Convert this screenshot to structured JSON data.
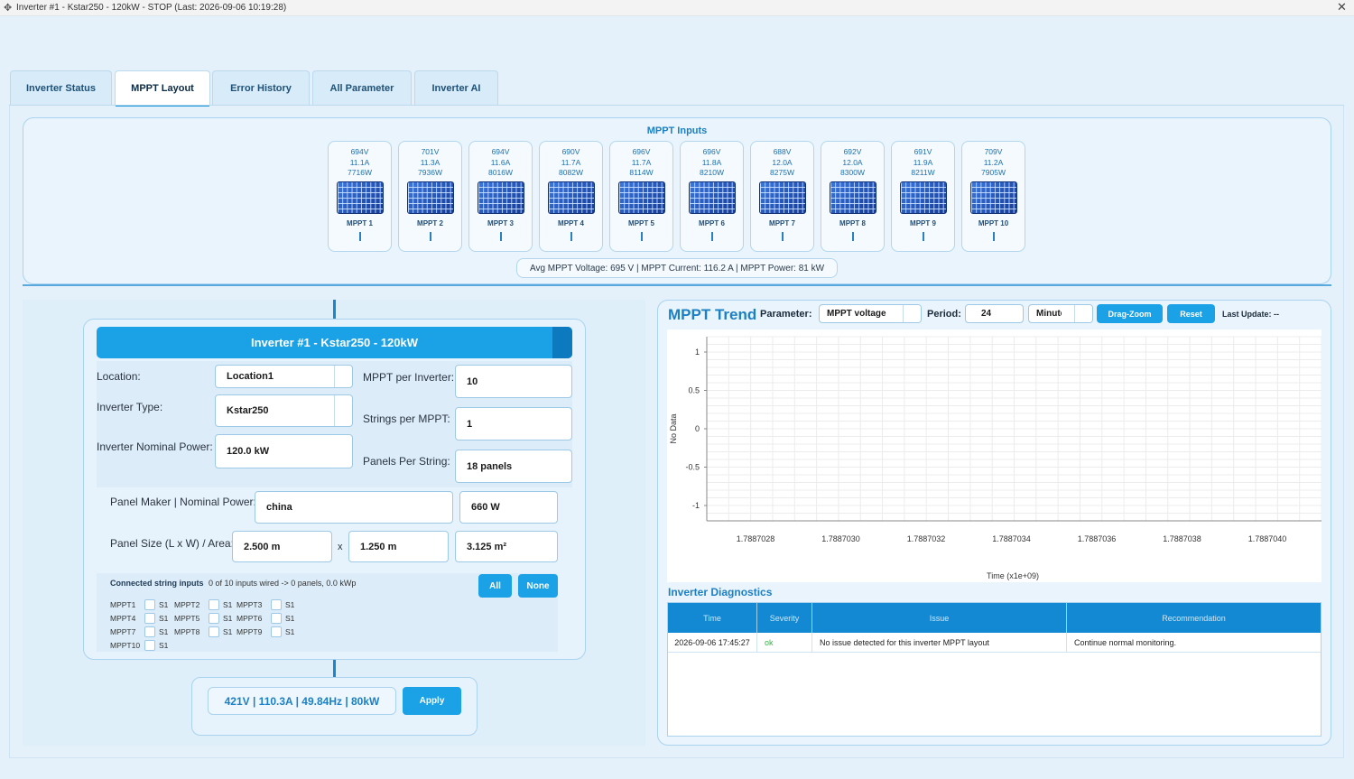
{
  "window": {
    "title": "Inverter #1 - Kstar250 - 120kW - STOP (Last: 2026-09-06 10:19:28)"
  },
  "tabs": [
    {
      "label": "Inverter Status"
    },
    {
      "label": "MPPT Layout"
    },
    {
      "label": "Error History"
    },
    {
      "label": "All Parameter"
    },
    {
      "label": "Inverter AI"
    }
  ],
  "mppt_inputs": {
    "title": "MPPT Inputs",
    "cards": [
      {
        "voltage": "694V",
        "current": "11.1A",
        "power": "7716W",
        "label": "MPPT 1"
      },
      {
        "voltage": "701V",
        "current": "11.3A",
        "power": "7936W",
        "label": "MPPT 2"
      },
      {
        "voltage": "694V",
        "current": "11.6A",
        "power": "8016W",
        "label": "MPPT 3"
      },
      {
        "voltage": "690V",
        "current": "11.7A",
        "power": "8082W",
        "label": "MPPT 4"
      },
      {
        "voltage": "696V",
        "current": "11.7A",
        "power": "8114W",
        "label": "MPPT 5"
      },
      {
        "voltage": "696V",
        "current": "11.8A",
        "power": "8210W",
        "label": "MPPT 6"
      },
      {
        "voltage": "688V",
        "current": "12.0A",
        "power": "8275W",
        "label": "MPPT 7"
      },
      {
        "voltage": "692V",
        "current": "12.0A",
        "power": "8300W",
        "label": "MPPT 8"
      },
      {
        "voltage": "691V",
        "current": "11.9A",
        "power": "8211W",
        "label": "MPPT 9"
      },
      {
        "voltage": "709V",
        "current": "11.2A",
        "power": "7905W",
        "label": "MPPT 10"
      }
    ],
    "summary": "Avg MPPT Voltage: 695 V  |  MPPT Current: 116.2 A  |  MPPT Power: 81 kW"
  },
  "inverter": {
    "header": "Inverter #1 - Kstar250 - 120kW",
    "location_label": "Location:",
    "location_value": "Location1",
    "type_label": "Inverter Type:",
    "type_value": "Kstar250",
    "nominal_label": "Inverter Nominal Power:",
    "nominal_value": "120.0 kW",
    "mppt_per_inv_label": "MPPT per Inverter:",
    "mppt_per_inv_value": "10",
    "strings_per_mppt_label": "Strings per MPPT:",
    "strings_per_mppt_value": "1",
    "panels_per_string_label": "Panels Per String:",
    "panels_per_string_value": "18 panels",
    "panel_maker_label": "Panel Maker | Nominal Power:",
    "panel_maker_value": "china",
    "panel_power_value": "660 W",
    "panel_size_label": "Panel Size (L x W) / Area:",
    "panel_length": "2.500 m",
    "size_sep": "x",
    "panel_width": "1.250 m",
    "panel_area": "3.125 m²",
    "connected_title": "Connected string inputs",
    "connected_status": "0 of 10 inputs wired  ->  0 panels, 0.0 kWp",
    "btn_all": "All",
    "btn_none": "None",
    "string_inputs": [
      {
        "mppt": "MPPT1",
        "s": "S1"
      },
      {
        "mppt": "MPPT2",
        "s": "S1"
      },
      {
        "mppt": "MPPT3",
        "s": "S1"
      },
      {
        "mppt": "MPPT4",
        "s": "S1"
      },
      {
        "mppt": "MPPT5",
        "s": "S1"
      },
      {
        "mppt": "MPPT6",
        "s": "S1"
      },
      {
        "mppt": "MPPT7",
        "s": "S1"
      },
      {
        "mppt": "MPPT8",
        "s": "S1"
      },
      {
        "mppt": "MPPT9",
        "s": "S1"
      },
      {
        "mppt": "MPPT10",
        "s": "S1"
      }
    ],
    "readout": "421V  |  110.3A  |  49.84Hz  |  80kW",
    "apply_label": "Apply"
  },
  "trend": {
    "title": "MPPT Trend",
    "parameter_label": "Parameter:",
    "parameter_value": "MPPT voltage",
    "period_label": "Period:",
    "period_value": "24",
    "period_unit": "Minutes",
    "btn_dragzoom": "Drag-Zoom",
    "btn_reset": "Reset",
    "last_update": "Last Update: --"
  },
  "chart_data": {
    "type": "line",
    "title": "",
    "xlabel": "Time (x1e+09)",
    "ylabel": "No Data",
    "x_ticks": [
      "1.7887028",
      "1.7887030",
      "1.7887032",
      "1.7887034",
      "1.7887036",
      "1.7887038",
      "1.7887040"
    ],
    "y_ticks": [
      "1",
      "0.5",
      "0",
      "-0.5",
      "-1"
    ],
    "ylim": [
      -1.2,
      1.2
    ],
    "grid": true,
    "series": []
  },
  "diagnostics": {
    "title": "Inverter Diagnostics",
    "columns": [
      "Time",
      "Severity",
      "Issue",
      "Recommendation"
    ],
    "rows": [
      {
        "time": "2026-09-06 17:45:27",
        "severity": "ok",
        "issue": "No issue detected for this inverter MPPT layout",
        "recommendation": "Continue normal monitoring."
      }
    ],
    "colors": {
      "ok": "#36b34a",
      "header": "#1489d3"
    }
  }
}
